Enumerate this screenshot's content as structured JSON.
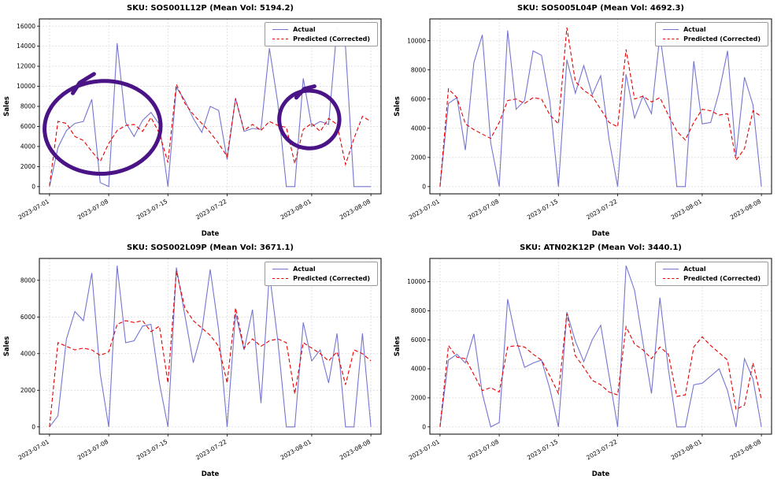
{
  "figure": {
    "background": "#ffffff"
  },
  "palette": {
    "actual": "#7575d2",
    "predicted": "#e60000",
    "annotation": "#4a1486",
    "grid": "#dcdcdc"
  },
  "legend": {
    "actual_label": "Actual",
    "predicted_label": "Predicted (Corrected)"
  },
  "chart_data": [
    {
      "type": "line",
      "title": "SKU: SOS001L12P (Mean Vol: 5194.2)",
      "xlabel": "Date",
      "ylabel": "Sales",
      "legend_position": "upper right",
      "grid": true,
      "ylim": [
        0,
        16000
      ],
      "yticks": [
        0,
        2000,
        4000,
        6000,
        8000,
        10000,
        12000,
        14000,
        16000
      ],
      "xticks": [
        {
          "i": 0,
          "label": "2023-07-01"
        },
        {
          "i": 7,
          "label": "2023-07-08"
        },
        {
          "i": 14,
          "label": "2023-07-15"
        },
        {
          "i": 21,
          "label": "2023-07-22"
        },
        {
          "i": 31,
          "label": "2023-08-01"
        },
        {
          "i": 38,
          "label": "2023-08-08"
        }
      ],
      "x": [
        "2023-07-01",
        "2023-07-02",
        "2023-07-03",
        "2023-07-04",
        "2023-07-05",
        "2023-07-06",
        "2023-07-07",
        "2023-07-08",
        "2023-07-09",
        "2023-07-10",
        "2023-07-11",
        "2023-07-12",
        "2023-07-13",
        "2023-07-14",
        "2023-07-15",
        "2023-07-16",
        "2023-07-17",
        "2023-07-18",
        "2023-07-19",
        "2023-07-20",
        "2023-07-21",
        "2023-07-22",
        "2023-07-23",
        "2023-07-24",
        "2023-07-25",
        "2023-07-26",
        "2023-07-27",
        "2023-07-28",
        "2023-07-29",
        "2023-07-30",
        "2023-07-31",
        "2023-08-01",
        "2023-08-02",
        "2023-08-03",
        "2023-08-04",
        "2023-08-05",
        "2023-08-06",
        "2023-08-07",
        "2023-08-08"
      ],
      "series": [
        {
          "name": "Actual",
          "style": "solid",
          "color": "#7575d2",
          "values": [
            0,
            3900,
            5600,
            6300,
            6500,
            8700,
            400,
            0,
            14300,
            6400,
            5000,
            6600,
            7400,
            6200,
            0,
            9900,
            8600,
            6800,
            5400,
            8000,
            7600,
            2700,
            8800,
            5500,
            5800,
            5700,
            13800,
            8300,
            0,
            0,
            10800,
            6000,
            6500,
            6200,
            15900,
            13900,
            0,
            0,
            0
          ]
        },
        {
          "name": "Predicted (Corrected)",
          "style": "dashed",
          "color": "#e60000",
          "values": [
            100,
            6500,
            6300,
            5000,
            4600,
            3500,
            2500,
            4300,
            5600,
            6100,
            6200,
            5500,
            6900,
            5300,
            2400,
            10200,
            8300,
            7200,
            6300,
            5400,
            4300,
            3000,
            8800,
            5600,
            6200,
            5600,
            6500,
            6100,
            5900,
            2300,
            5700,
            6300,
            5500,
            6800,
            6200,
            2200,
            4800,
            7000,
            6500
          ]
        }
      ],
      "annotations": [
        {
          "shape": "ellipse",
          "cx": 0.185,
          "cy": 0.62,
          "rx": 0.17,
          "ry": 0.265,
          "rot": -4
        },
        {
          "shape": "stroke",
          "points": [
            [
              0.16,
              0.315
            ],
            [
              0.118,
              0.365
            ],
            [
              0.098,
              0.425
            ]
          ]
        },
        {
          "shape": "ellipse",
          "cx": 0.79,
          "cy": 0.575,
          "rx": 0.088,
          "ry": 0.165,
          "rot": 3
        },
        {
          "shape": "stroke",
          "points": [
            [
              0.805,
              0.385
            ],
            [
              0.775,
              0.4
            ],
            [
              0.752,
              0.45
            ]
          ]
        }
      ]
    },
    {
      "type": "line",
      "title": "SKU: SOS005L04P (Mean Vol: 4692.3)",
      "xlabel": "Date",
      "ylabel": "Sales",
      "legend_position": "upper right",
      "grid": true,
      "ylim": [
        0,
        11000
      ],
      "yticks": [
        0,
        2000,
        4000,
        6000,
        8000,
        10000
      ],
      "xticks": [
        {
          "i": 0,
          "label": "2023-07-01"
        },
        {
          "i": 7,
          "label": "2023-07-08"
        },
        {
          "i": 14,
          "label": "2023-07-15"
        },
        {
          "i": 21,
          "label": "2023-07-22"
        },
        {
          "i": 31,
          "label": "2023-08-01"
        },
        {
          "i": 38,
          "label": "2023-08-08"
        }
      ],
      "x": [
        "2023-07-01",
        "2023-07-02",
        "2023-07-03",
        "2023-07-04",
        "2023-07-05",
        "2023-07-06",
        "2023-07-07",
        "2023-07-08",
        "2023-07-09",
        "2023-07-10",
        "2023-07-11",
        "2023-07-12",
        "2023-07-13",
        "2023-07-14",
        "2023-07-15",
        "2023-07-16",
        "2023-07-17",
        "2023-07-18",
        "2023-07-19",
        "2023-07-20",
        "2023-07-21",
        "2023-07-22",
        "2023-07-23",
        "2023-07-24",
        "2023-07-25",
        "2023-07-26",
        "2023-07-27",
        "2023-07-28",
        "2023-07-29",
        "2023-07-30",
        "2023-07-31",
        "2023-08-01",
        "2023-08-02",
        "2023-08-03",
        "2023-08-04",
        "2023-08-05",
        "2023-08-06",
        "2023-08-07",
        "2023-08-08"
      ],
      "series": [
        {
          "name": "Actual",
          "style": "solid",
          "color": "#7575d2",
          "values": [
            0,
            5700,
            6100,
            2500,
            8500,
            10400,
            3000,
            0,
            10700,
            5300,
            5900,
            9300,
            9000,
            5800,
            0,
            8700,
            6400,
            8300,
            6300,
            7600,
            3200,
            0,
            7700,
            4700,
            6200,
            5000,
            10400,
            6200,
            0,
            0,
            8600,
            4300,
            4400,
            6500,
            9300,
            2100,
            7500,
            5600,
            0
          ]
        },
        {
          "name": "Predicted (Corrected)",
          "style": "dashed",
          "color": "#e60000",
          "values": [
            0,
            6700,
            6100,
            4300,
            3900,
            3600,
            3300,
            4400,
            5900,
            6000,
            5700,
            6100,
            6000,
            4900,
            4300,
            10900,
            7200,
            6600,
            6200,
            5300,
            4400,
            4100,
            9400,
            6000,
            6200,
            5800,
            6100,
            4900,
            3800,
            3200,
            4400,
            5300,
            5200,
            4900,
            5000,
            1800,
            2600,
            5200,
            4800
          ]
        }
      ],
      "annotations": []
    },
    {
      "type": "line",
      "title": "SKU: SOS002L09P (Mean Vol: 3671.1)",
      "xlabel": "Date",
      "ylabel": "Sales",
      "legend_position": "upper right",
      "grid": true,
      "ylim": [
        0,
        8800
      ],
      "yticks": [
        0,
        2000,
        4000,
        6000,
        8000
      ],
      "xticks": [
        {
          "i": 0,
          "label": "2023-07-01"
        },
        {
          "i": 7,
          "label": "2023-07-08"
        },
        {
          "i": 14,
          "label": "2023-07-15"
        },
        {
          "i": 21,
          "label": "2023-07-22"
        },
        {
          "i": 31,
          "label": "2023-08-01"
        },
        {
          "i": 38,
          "label": "2023-08-08"
        }
      ],
      "x": [
        "2023-07-01",
        "2023-07-02",
        "2023-07-03",
        "2023-07-04",
        "2023-07-05",
        "2023-07-06",
        "2023-07-07",
        "2023-07-08",
        "2023-07-09",
        "2023-07-10",
        "2023-07-11",
        "2023-07-12",
        "2023-07-13",
        "2023-07-14",
        "2023-07-15",
        "2023-07-16",
        "2023-07-17",
        "2023-07-18",
        "2023-07-19",
        "2023-07-20",
        "2023-07-21",
        "2023-07-22",
        "2023-07-23",
        "2023-07-24",
        "2023-07-25",
        "2023-07-26",
        "2023-07-27",
        "2023-07-28",
        "2023-07-29",
        "2023-07-30",
        "2023-07-31",
        "2023-08-01",
        "2023-08-02",
        "2023-08-03",
        "2023-08-04",
        "2023-08-05",
        "2023-08-06",
        "2023-08-07",
        "2023-08-08"
      ],
      "series": [
        {
          "name": "Actual",
          "style": "solid",
          "color": "#7575d2",
          "values": [
            0,
            600,
            4800,
            6300,
            5800,
            8400,
            2900,
            0,
            8800,
            4600,
            4700,
            5500,
            5600,
            2400,
            0,
            8700,
            6100,
            3500,
            5200,
            8600,
            5300,
            0,
            6200,
            4200,
            6400,
            1300,
            8400,
            4700,
            0,
            0,
            5700,
            3600,
            4200,
            2400,
            5100,
            0,
            0,
            5100,
            0
          ]
        },
        {
          "name": "Predicted (Corrected)",
          "style": "dashed",
          "color": "#e60000",
          "values": [
            0,
            4600,
            4400,
            4200,
            4300,
            4200,
            3900,
            4100,
            5600,
            5800,
            5700,
            5800,
            5200,
            5500,
            2400,
            8500,
            6500,
            5800,
            5400,
            5000,
            4400,
            2400,
            6500,
            4300,
            4800,
            4400,
            4700,
            4800,
            4600,
            1800,
            4600,
            4300,
            4000,
            3600,
            4100,
            2300,
            4200,
            4000,
            3600
          ]
        }
      ],
      "annotations": []
    },
    {
      "type": "line",
      "title": "SKU: ATN02K12P (Mean Vol: 3440.1)",
      "xlabel": "Date",
      "ylabel": "Sales",
      "legend_position": "upper right",
      "grid": true,
      "ylim": [
        0,
        11100
      ],
      "yticks": [
        0,
        2000,
        4000,
        6000,
        8000,
        10000
      ],
      "xticks": [
        {
          "i": 0,
          "label": "2023-07-01"
        },
        {
          "i": 7,
          "label": "2023-07-08"
        },
        {
          "i": 14,
          "label": "2023-07-15"
        },
        {
          "i": 21,
          "label": "2023-07-22"
        },
        {
          "i": 31,
          "label": "2023-08-01"
        },
        {
          "i": 38,
          "label": "2023-08-08"
        }
      ],
      "x": [
        "2023-07-01",
        "2023-07-02",
        "2023-07-03",
        "2023-07-04",
        "2023-07-05",
        "2023-07-06",
        "2023-07-07",
        "2023-07-08",
        "2023-07-09",
        "2023-07-10",
        "2023-07-11",
        "2023-07-12",
        "2023-07-13",
        "2023-07-14",
        "2023-07-15",
        "2023-07-16",
        "2023-07-17",
        "2023-07-18",
        "2023-07-19",
        "2023-07-20",
        "2023-07-21",
        "2023-07-22",
        "2023-07-23",
        "2023-07-24",
        "2023-07-25",
        "2023-07-26",
        "2023-07-27",
        "2023-07-28",
        "2023-07-29",
        "2023-07-30",
        "2023-07-31",
        "2023-08-01",
        "2023-08-02",
        "2023-08-03",
        "2023-08-04",
        "2023-08-05",
        "2023-08-06",
        "2023-08-07",
        "2023-08-08"
      ],
      "series": [
        {
          "name": "Actual",
          "style": "solid",
          "color": "#7575d2",
          "values": [
            0,
            4600,
            5000,
            4400,
            6400,
            2300,
            0,
            300,
            8800,
            6000,
            4100,
            4400,
            4600,
            2600,
            0,
            7900,
            5900,
            4500,
            6000,
            7000,
            3500,
            0,
            11100,
            9400,
            5800,
            2300,
            8900,
            4000,
            0,
            0,
            2900,
            3000,
            3500,
            4000,
            2500,
            0,
            4700,
            3300,
            0
          ]
        },
        {
          "name": "Predicted (Corrected)",
          "style": "dashed",
          "color": "#e60000",
          "values": [
            0,
            5600,
            4800,
            4700,
            3600,
            2500,
            2700,
            2400,
            5500,
            5600,
            5500,
            5000,
            4600,
            3500,
            2300,
            7800,
            4900,
            4100,
            3200,
            2900,
            2400,
            2200,
            6900,
            5700,
            5300,
            4700,
            5500,
            5000,
            2100,
            2200,
            5500,
            6200,
            5600,
            5100,
            4600,
            1200,
            1500,
            4400,
            1900
          ]
        }
      ],
      "annotations": []
    }
  ]
}
